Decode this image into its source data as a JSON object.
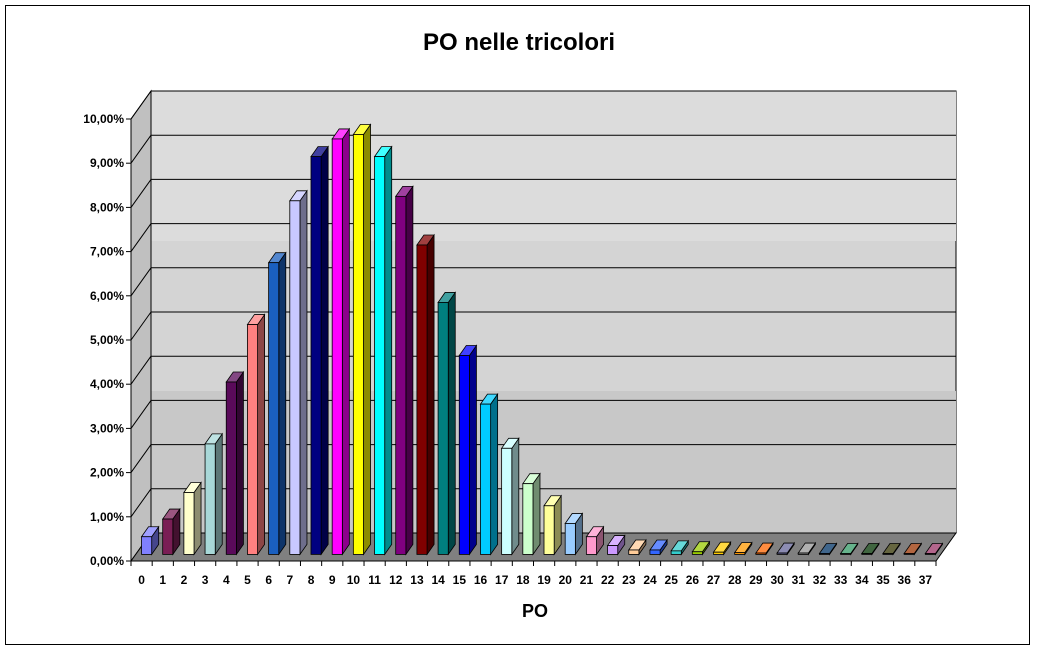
{
  "chart_data": {
    "type": "bar",
    "title": "PO nelle tricolori",
    "xlabel": "PO",
    "ylabel": "",
    "ylim": [
      0,
      0.1
    ],
    "y_ticks": [
      0,
      0.01,
      0.02,
      0.03,
      0.04,
      0.05,
      0.06,
      0.07,
      0.08,
      0.09,
      0.1
    ],
    "y_tick_labels": [
      "0,00%",
      "1,00%",
      "2,00%",
      "3,00%",
      "4,00%",
      "5,00%",
      "6,00%",
      "7,00%",
      "8,00%",
      "9,00%",
      "10,00%"
    ],
    "categories": [
      "0",
      "1",
      "2",
      "3",
      "4",
      "5",
      "6",
      "7",
      "8",
      "9",
      "10",
      "11",
      "12",
      "13",
      "14",
      "15",
      "16",
      "17",
      "18",
      "19",
      "20",
      "21",
      "22",
      "23",
      "24",
      "25",
      "26",
      "27",
      "28",
      "29",
      "30",
      "31",
      "32",
      "33",
      "34",
      "35",
      "36",
      "37"
    ],
    "values": [
      0.004,
      0.008,
      0.014,
      0.025,
      0.039,
      0.052,
      0.066,
      0.08,
      0.09,
      0.094,
      0.095,
      0.09,
      0.081,
      0.07,
      0.057,
      0.045,
      0.034,
      0.024,
      0.016,
      0.011,
      0.007,
      0.004,
      0.002,
      0.001,
      0.001,
      0.0008,
      0.0006,
      0.0005,
      0.0004,
      0.0003,
      0.0003,
      0.0003,
      0.0002,
      0.0002,
      0.0002,
      0.0002,
      0.0002,
      0.0002
    ],
    "colors": [
      "#8080ff",
      "#7a1e55",
      "#ffffcc",
      "#a8d8d8",
      "#5a0a5a",
      "#ff8080",
      "#1a5fbf",
      "#c8c8ff",
      "#000080",
      "#ff00ff",
      "#ffff00",
      "#00ffff",
      "#800080",
      "#800000",
      "#008080",
      "#0000ff",
      "#00ccff",
      "#ccffff",
      "#ccffcc",
      "#ffff99",
      "#99ccff",
      "#ff99cc",
      "#cc99ff",
      "#ffcc99",
      "#3366ff",
      "#33cccc",
      "#99cc00",
      "#ffcc00",
      "#ff9900",
      "#ff6600",
      "#666699",
      "#969696",
      "#003366",
      "#339966",
      "#003300",
      "#333300",
      "#993300",
      "#993366"
    ],
    "grid": true,
    "legend": "none"
  }
}
